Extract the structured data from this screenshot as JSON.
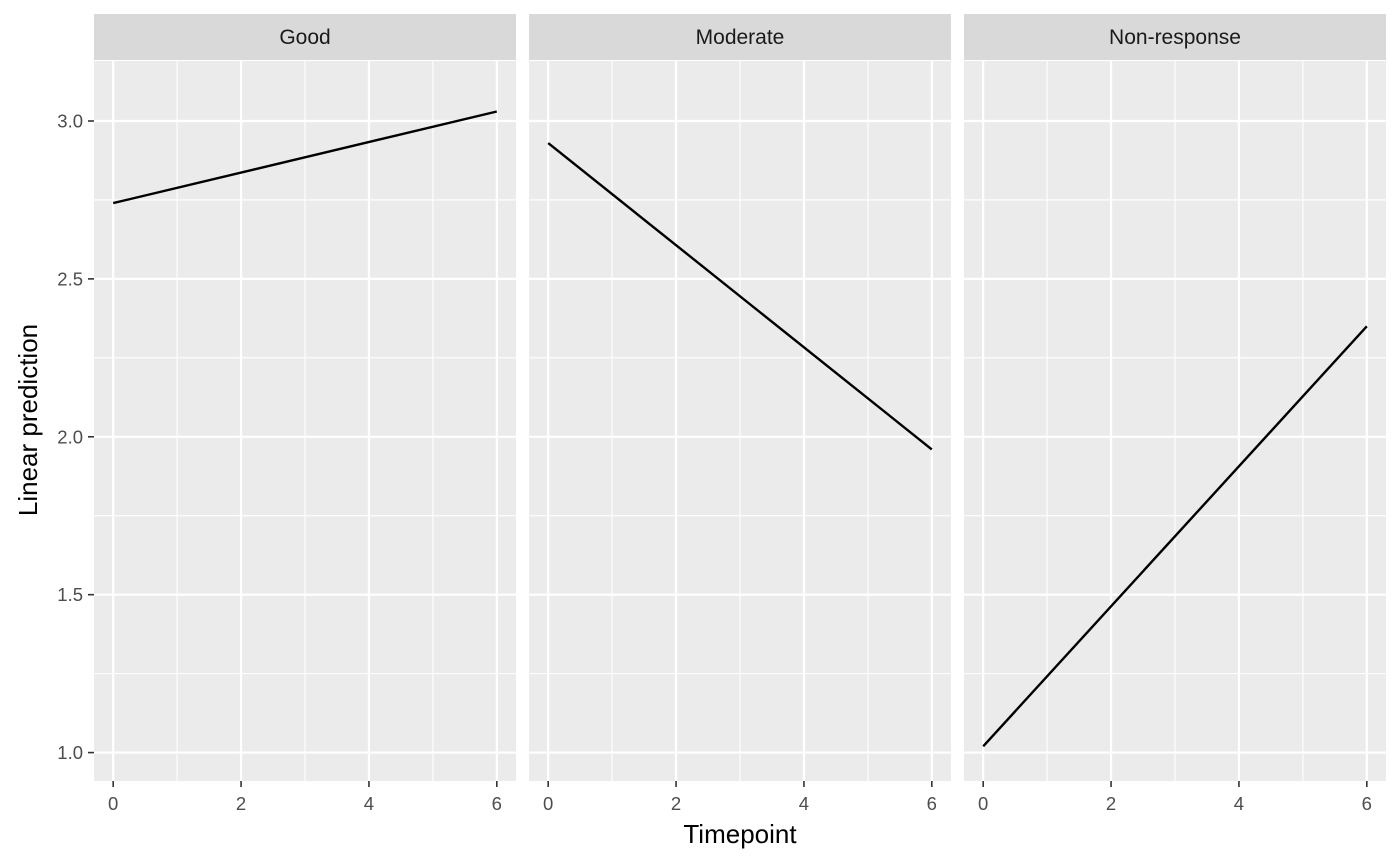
{
  "chart_data": {
    "type": "line",
    "facet_by": "response",
    "xlabel": "Timepoint",
    "ylabel": "Linear prediction",
    "xlim": [
      -0.3,
      6.3
    ],
    "ylim": [
      0.91,
      3.19
    ],
    "x_ticks": [
      0,
      2,
      4,
      6
    ],
    "y_ticks": [
      1.0,
      1.5,
      2.0,
      2.5,
      3.0
    ],
    "x_tick_labels": [
      "0",
      "2",
      "4",
      "6"
    ],
    "y_tick_labels": [
      "1.0",
      "1.5",
      "2.0",
      "2.5",
      "3.0"
    ],
    "grid": true,
    "panel_background": "#ebebeb",
    "strip_background": "#d9d9d9",
    "line_color": "#000000",
    "panels": [
      {
        "label": "Good",
        "x": [
          0,
          6
        ],
        "y": [
          2.74,
          3.03
        ]
      },
      {
        "label": "Moderate",
        "x": [
          0,
          6
        ],
        "y": [
          2.93,
          1.96
        ]
      },
      {
        "label": "Non-response",
        "x": [
          0,
          6
        ],
        "y": [
          1.02,
          2.35
        ]
      }
    ]
  }
}
